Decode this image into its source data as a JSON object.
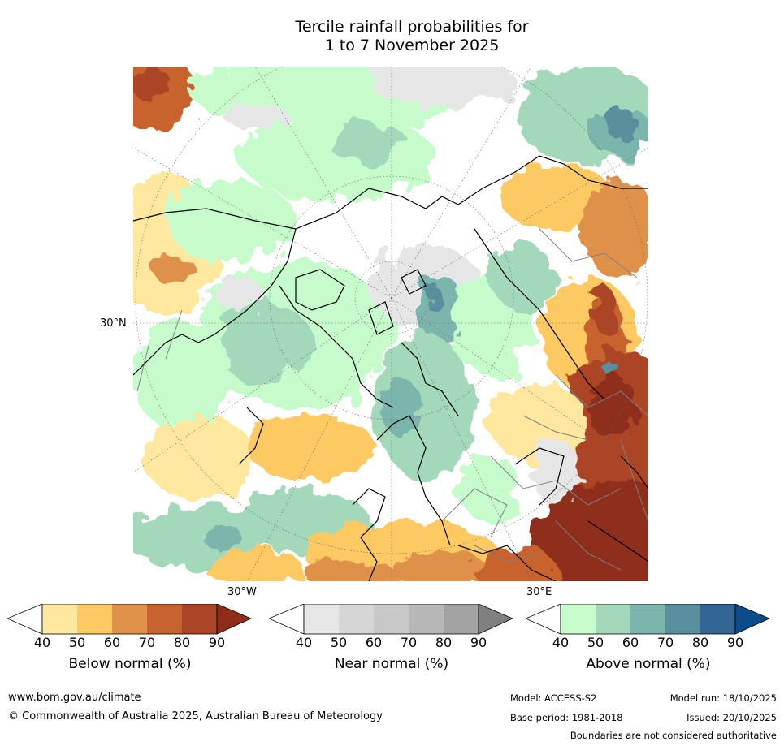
{
  "title_line1": "Tercile rainfall probabilities for",
  "title_line2": "1 to 7 November 2025",
  "map": {
    "projection": "north-polar-stereographic",
    "lat_label": "30°N",
    "lon_label_w": "30°W",
    "lon_label_e": "30°E",
    "colors": {
      "ocean_white": "#ffffff",
      "coast": "#000000",
      "borders": "#808080",
      "grid": "#666666"
    }
  },
  "colorbars": [
    {
      "name": "Below normal (%)",
      "ticks": [
        "40",
        "50",
        "60",
        "70",
        "80",
        "90"
      ],
      "colors": [
        "#ffffff",
        "#fee79e",
        "#fdc963",
        "#e0914a",
        "#c8632f",
        "#ab4525",
        "#8e2d1a"
      ]
    },
    {
      "name": "Near normal (%)",
      "ticks": [
        "40",
        "50",
        "60",
        "70",
        "80",
        "90"
      ],
      "colors": [
        "#ffffff",
        "#e6e6e6",
        "#d6d6d6",
        "#c8c8c8",
        "#b7b7b7",
        "#a3a3a3",
        "#808080"
      ]
    },
    {
      "name": "Above normal (%)",
      "ticks": [
        "40",
        "50",
        "60",
        "70",
        "80",
        "90"
      ],
      "colors": [
        "#ffffff",
        "#c6fbcb",
        "#a3d8bb",
        "#7cb5ac",
        "#5a909d",
        "#336695",
        "#0d4c8a"
      ]
    }
  ],
  "footer": {
    "website": "www.bom.gov.au/climate",
    "copyright": "© Commonwealth of Australia 2025, Australian Bureau of Meteorology",
    "model": "Model: ACCESS-S2",
    "model_run": "Model run: 18/10/2025",
    "base_period": "Base period: 1981-2018",
    "issued": "Issued: 20/10/2025",
    "disclaimer": "Boundaries are not considered authoritative"
  }
}
